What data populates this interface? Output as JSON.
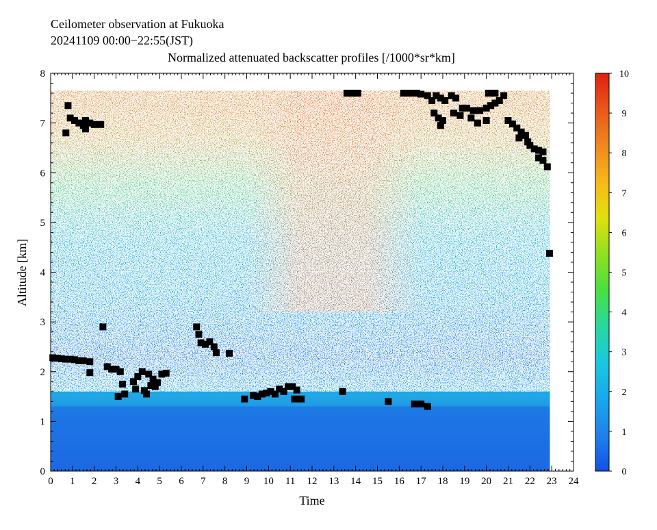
{
  "chart_data": {
    "type": "heatmap",
    "title_lines": [
      "Ceilometer observation at Fukuoka",
      "20241109  00:00−22:55(JST)",
      "Normalized attenuated backscatter profiles [/1000*sr*km]"
    ],
    "xlabel": "Time",
    "ylabel": "Altitude [km]",
    "xlim": [
      0,
      24
    ],
    "ylim": [
      0,
      8
    ],
    "x_ticks": [
      0,
      1,
      2,
      3,
      4,
      5,
      6,
      7,
      8,
      9,
      10,
      11,
      12,
      13,
      14,
      15,
      16,
      17,
      18,
      19,
      20,
      21,
      22,
      23,
      24
    ],
    "y_ticks": [
      0,
      1,
      2,
      3,
      4,
      5,
      6,
      7,
      8
    ],
    "data_x_range": [
      0,
      22.917
    ],
    "data_y_max": 7.65,
    "colorbar": {
      "min": 0,
      "max": 10,
      "ticks": [
        0,
        1,
        2,
        3,
        4,
        5,
        6,
        7,
        8,
        9,
        10
      ],
      "colors": [
        "#1450e6",
        "#1e82ea",
        "#18a8ec",
        "#18c8e0",
        "#28d8a0",
        "#48e040",
        "#90e020",
        "#e0e010",
        "#f8b818",
        "#f08820",
        "#e85818",
        "#e02010"
      ]
    },
    "grid": false,
    "cloud_base_color": "#000000",
    "cloud_base_points": [
      [
        0.1,
        2.28
      ],
      [
        0.3,
        2.27
      ],
      [
        0.5,
        2.26
      ],
      [
        0.7,
        2.25
      ],
      [
        0.9,
        2.25
      ],
      [
        1.1,
        2.24
      ],
      [
        1.3,
        2.22
      ],
      [
        1.5,
        2.22
      ],
      [
        1.8,
        2.2
      ],
      [
        1.8,
        1.98
      ],
      [
        2.4,
        2.9
      ],
      [
        2.6,
        2.1
      ],
      [
        2.8,
        2.05
      ],
      [
        3.0,
        2.05
      ],
      [
        3.2,
        2.0
      ],
      [
        3.3,
        1.75
      ],
      [
        3.1,
        1.5
      ],
      [
        3.4,
        1.55
      ],
      [
        3.8,
        1.8
      ],
      [
        3.9,
        1.65
      ],
      [
        4.0,
        1.9
      ],
      [
        4.2,
        2.0
      ],
      [
        4.3,
        1.62
      ],
      [
        4.5,
        1.95
      ],
      [
        4.6,
        1.72
      ],
      [
        4.7,
        1.85
      ],
      [
        4.8,
        1.7
      ],
      [
        4.9,
        1.78
      ],
      [
        5.1,
        1.95
      ],
      [
        5.3,
        1.97
      ],
      [
        4.4,
        1.55
      ],
      [
        6.7,
        2.9
      ],
      [
        6.8,
        2.75
      ],
      [
        6.9,
        2.58
      ],
      [
        7.1,
        2.55
      ],
      [
        7.3,
        2.6
      ],
      [
        7.5,
        2.5
      ],
      [
        7.6,
        2.38
      ],
      [
        8.2,
        2.37
      ],
      [
        8.9,
        1.45
      ],
      [
        9.3,
        1.52
      ],
      [
        9.5,
        1.5
      ],
      [
        9.7,
        1.55
      ],
      [
        9.9,
        1.57
      ],
      [
        10.1,
        1.6
      ],
      [
        10.3,
        1.55
      ],
      [
        10.5,
        1.65
      ],
      [
        10.7,
        1.6
      ],
      [
        10.9,
        1.7
      ],
      [
        11.1,
        1.7
      ],
      [
        11.3,
        1.63
      ],
      [
        11.5,
        1.45
      ],
      [
        11.2,
        1.45
      ],
      [
        13.4,
        1.6
      ],
      [
        15.5,
        1.4
      ],
      [
        16.7,
        1.35
      ],
      [
        17.0,
        1.35
      ],
      [
        17.3,
        1.3
      ],
      [
        0.8,
        7.35
      ],
      [
        0.9,
        7.1
      ],
      [
        1.1,
        7.05
      ],
      [
        0.7,
        6.8
      ],
      [
        1.3,
        7.0
      ],
      [
        1.5,
        6.95
      ],
      [
        1.6,
        7.05
      ],
      [
        1.8,
        7.0
      ],
      [
        2.0,
        6.97
      ],
      [
        2.3,
        6.97
      ],
      [
        1.6,
        6.88
      ],
      [
        13.6,
        7.6
      ],
      [
        13.9,
        7.6
      ],
      [
        14.1,
        7.6
      ],
      [
        16.2,
        7.6
      ],
      [
        16.5,
        7.6
      ],
      [
        16.8,
        7.6
      ],
      [
        17.0,
        7.58
      ],
      [
        17.3,
        7.55
      ],
      [
        17.5,
        7.45
      ],
      [
        17.7,
        7.55
      ],
      [
        17.9,
        7.5
      ],
      [
        18.1,
        7.45
      ],
      [
        18.4,
        7.55
      ],
      [
        18.6,
        7.5
      ],
      [
        18.9,
        7.3
      ],
      [
        19.1,
        7.3
      ],
      [
        19.4,
        7.25
      ],
      [
        19.7,
        7.25
      ],
      [
        20.0,
        7.3
      ],
      [
        20.2,
        7.35
      ],
      [
        20.4,
        7.4
      ],
      [
        20.6,
        7.45
      ],
      [
        20.8,
        7.55
      ],
      [
        20.1,
        7.6
      ],
      [
        20.4,
        7.6
      ],
      [
        17.6,
        7.2
      ],
      [
        17.8,
        7.1
      ],
      [
        18.0,
        7.05
      ],
      [
        17.9,
        6.95
      ],
      [
        18.5,
        7.2
      ],
      [
        18.8,
        7.15
      ],
      [
        19.3,
        7.1
      ],
      [
        19.6,
        7.0
      ],
      [
        20.0,
        7.05
      ],
      [
        21.0,
        7.05
      ],
      [
        21.2,
        6.98
      ],
      [
        21.4,
        6.9
      ],
      [
        21.6,
        6.82
      ],
      [
        21.8,
        6.75
      ],
      [
        21.5,
        6.7
      ],
      [
        21.9,
        6.62
      ],
      [
        22.0,
        6.55
      ],
      [
        22.2,
        6.48
      ],
      [
        22.4,
        6.45
      ],
      [
        22.6,
        6.42
      ],
      [
        22.4,
        6.3
      ],
      [
        22.6,
        6.25
      ],
      [
        22.8,
        6.12
      ],
      [
        22.9,
        4.38
      ]
    ]
  }
}
